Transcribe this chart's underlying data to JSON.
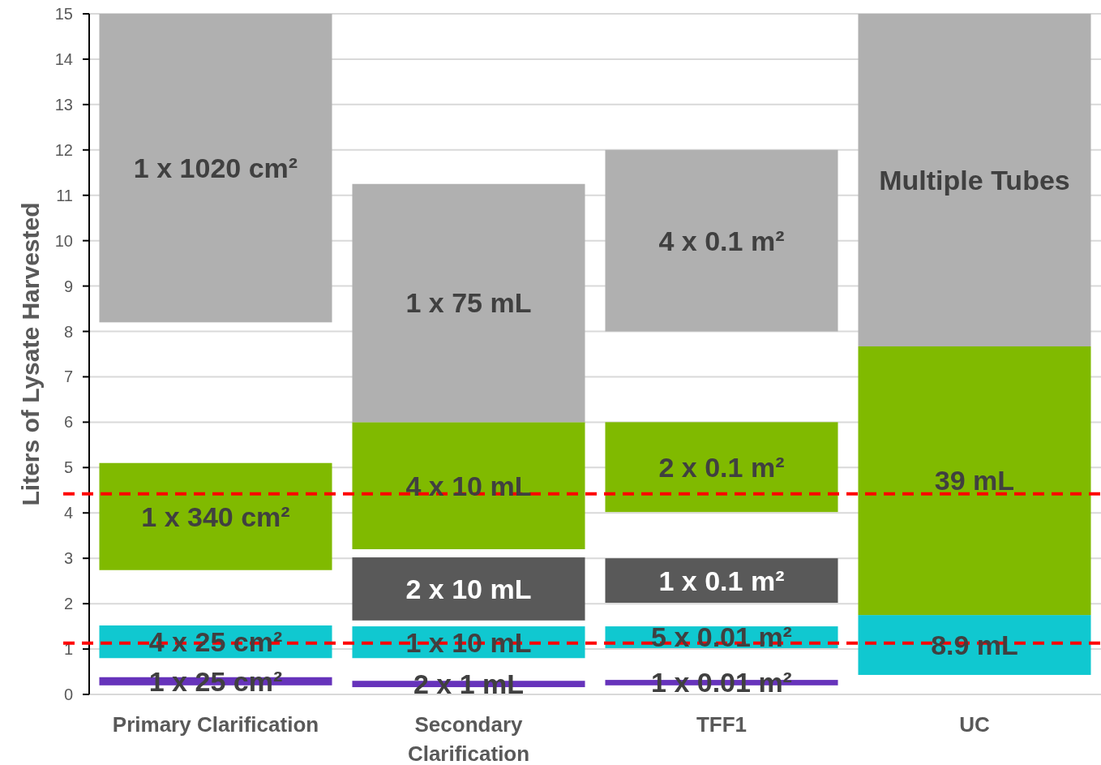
{
  "chart_data": {
    "type": "bar",
    "ylabel": "Liters of Lysate Harvested",
    "categories": [
      "Primary Clarification",
      "Secondary Clarification",
      "TFF1",
      "UC"
    ],
    "series": [
      {
        "color": "#6633bb",
        "base": [
          0.2,
          0.16,
          0.2,
          null
        ],
        "values": [
          0.18,
          0.14,
          0.12,
          null
        ]
      },
      {
        "color": "#10c8d0",
        "base": [
          0.8,
          0.8,
          1.02,
          0.43
        ],
        "values": [
          0.72,
          0.7,
          0.48,
          1.32
        ]
      },
      {
        "color": "#595959",
        "base": [
          null,
          1.63,
          2.02,
          null
        ],
        "values": [
          null,
          1.39,
          0.98,
          null
        ]
      },
      {
        "color": "#80ba00",
        "base": [
          2.74,
          3.2,
          4.02,
          1.75
        ],
        "values": [
          2.36,
          2.8,
          1.98,
          5.92
        ]
      },
      {
        "color": "#b0b0b0",
        "base": [
          8.2,
          6,
          8,
          7.67
        ],
        "values": [
          6.8,
          5.25,
          4,
          7.33
        ]
      }
    ],
    "annotations": [
      "1 x 25 cm²",
      "2 x 1 mL",
      "1 x 0.01 m²",
      "4 x 25 cm²",
      "1 x 10 mL",
      "5 x 0.01 m²",
      "8.9 mL",
      "2 x 10 mL",
      "1 x 0.1 m²",
      "1 x 340 cm²",
      "4 x 10 mL",
      "2 x 0.1 m²",
      "39 mL",
      "1 x 1020 cm²",
      "1 x 75 mL",
      "4 x 0.1 m²",
      "Multiple Tubes"
    ],
    "ylim": [
      0,
      15
    ],
    "yticks": [
      0,
      1,
      2,
      3,
      4,
      5,
      6,
      7,
      8,
      9,
      10,
      11,
      12,
      13,
      14,
      15
    ],
    "grid": "y",
    "ref_lines": [
      {
        "axis": "y",
        "value": 4.42,
        "color": "#ff0000",
        "line_style": "dashed"
      },
      {
        "axis": "y",
        "value": 1.13,
        "color": "#ff0000",
        "line_style": "dashed"
      }
    ]
  }
}
